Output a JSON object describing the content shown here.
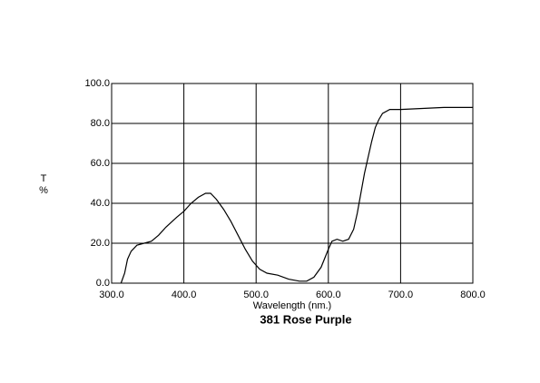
{
  "chart_data": {
    "type": "line",
    "title": "381 Rose Purple",
    "xlabel": "Wavelength (nm.)",
    "ylabel": "T",
    "yunit": "%",
    "x": [
      313,
      318,
      322,
      327,
      335,
      345,
      355,
      365,
      375,
      390,
      400,
      410,
      420,
      430,
      437,
      445,
      455,
      465,
      475,
      485,
      495,
      505,
      515,
      530,
      545,
      560,
      570,
      580,
      590,
      600,
      605,
      612,
      620,
      628,
      635,
      640,
      645,
      650,
      655,
      660,
      665,
      670,
      675,
      685,
      700,
      730,
      760,
      775,
      800
    ],
    "series": [
      {
        "color": "#000000",
        "values": [
          0,
          5,
          12,
          16,
          19,
          20,
          21,
          24,
          28,
          33,
          36,
          40,
          43,
          45,
          45,
          42,
          37,
          31,
          24,
          17,
          11,
          7,
          5,
          4,
          2,
          1,
          1,
          3,
          8,
          17,
          21,
          22,
          21,
          22,
          27,
          35,
          45,
          55,
          63,
          71,
          78,
          82,
          85,
          87,
          87,
          87.5,
          88,
          88,
          88
        ]
      }
    ],
    "xlim": [
      300,
      800
    ],
    "ylim": [
      0,
      100
    ],
    "xticks": [
      {
        "value": 300,
        "label": "300.0"
      },
      {
        "value": 400,
        "label": "400.0"
      },
      {
        "value": 500,
        "label": "500.0"
      },
      {
        "value": 600,
        "label": "600.0"
      },
      {
        "value": 700,
        "label": "700.0"
      },
      {
        "value": 800,
        "label": "800.0"
      }
    ],
    "yticks": [
      {
        "value": 0,
        "label": "0.0"
      },
      {
        "value": 20,
        "label": "20.0"
      },
      {
        "value": 40,
        "label": "40.0"
      },
      {
        "value": 60,
        "label": "60.0"
      },
      {
        "value": 80,
        "label": "80.0"
      },
      {
        "value": 100,
        "label": "100.0"
      }
    ],
    "grid": true
  }
}
